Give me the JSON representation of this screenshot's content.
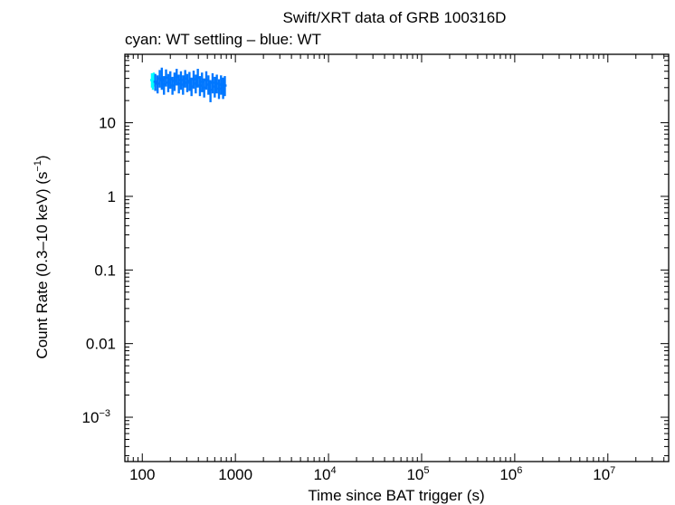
{
  "chart_data": {
    "type": "scatter",
    "title": "Swift/XRT data of GRB 100316D",
    "subtitle": "cyan: WT settling – blue: WT",
    "xlabel": "Time since BAT trigger (s)",
    "ylabel_main": "Count Rate (0.3–10 keV) (s",
    "ylabel_sup": "−1",
    "ylabel_end": ")",
    "x_scale": "log",
    "y_scale": "log",
    "xlim": [
      65,
      45000000
    ],
    "ylim": [
      0.00025,
      85
    ],
    "grid": false,
    "x_ticks": [
      {
        "value": 100,
        "label": "100",
        "sup": ""
      },
      {
        "value": 1000,
        "label": "1000",
        "sup": ""
      },
      {
        "value": 10000,
        "label": "10",
        "sup": "4"
      },
      {
        "value": 100000,
        "label": "10",
        "sup": "5"
      },
      {
        "value": 1000000,
        "label": "10",
        "sup": "6"
      },
      {
        "value": 10000000,
        "label": "10",
        "sup": "7"
      }
    ],
    "y_ticks": [
      {
        "value": 10,
        "label": "10",
        "sup": ""
      },
      {
        "value": 1,
        "label": "1",
        "sup": ""
      },
      {
        "value": 0.1,
        "label": "0.1",
        "sup": ""
      },
      {
        "value": 0.01,
        "label": "0.01",
        "sup": ""
      },
      {
        "value": 0.001,
        "label": "10",
        "sup": "−3"
      }
    ],
    "series": [
      {
        "name": "WT settling",
        "color": "#00ffff",
        "points": [
          {
            "x": 127,
            "y": 38,
            "ylo": 30,
            "yhi": 47
          },
          {
            "x": 130,
            "y": 36,
            "ylo": 28,
            "yhi": 45
          },
          {
            "x": 133,
            "y": 39,
            "ylo": 31,
            "yhi": 48
          }
        ]
      },
      {
        "name": "WT",
        "color": "#0077ff",
        "points": [
          {
            "x": 138,
            "y": 36,
            "ylo": 27,
            "yhi": 46
          },
          {
            "x": 146,
            "y": 34,
            "ylo": 25,
            "yhi": 44
          },
          {
            "x": 154,
            "y": 40,
            "ylo": 30,
            "yhi": 52
          },
          {
            "x": 162,
            "y": 38,
            "ylo": 28,
            "yhi": 56
          },
          {
            "x": 171,
            "y": 33,
            "ylo": 24,
            "yhi": 43
          },
          {
            "x": 180,
            "y": 41,
            "ylo": 31,
            "yhi": 53
          },
          {
            "x": 190,
            "y": 35,
            "ylo": 26,
            "yhi": 46
          },
          {
            "x": 200,
            "y": 39,
            "ylo": 29,
            "yhi": 50
          },
          {
            "x": 211,
            "y": 32,
            "ylo": 24,
            "yhi": 42
          },
          {
            "x": 222,
            "y": 37,
            "ylo": 27,
            "yhi": 48
          },
          {
            "x": 234,
            "y": 42,
            "ylo": 32,
            "yhi": 54
          },
          {
            "x": 247,
            "y": 34,
            "ylo": 25,
            "yhi": 45
          },
          {
            "x": 260,
            "y": 38,
            "ylo": 28,
            "yhi": 50
          },
          {
            "x": 274,
            "y": 33,
            "ylo": 24,
            "yhi": 44
          },
          {
            "x": 289,
            "y": 40,
            "ylo": 30,
            "yhi": 52
          },
          {
            "x": 304,
            "y": 35,
            "ylo": 26,
            "yhi": 46
          },
          {
            "x": 321,
            "y": 37,
            "ylo": 27,
            "yhi": 49
          },
          {
            "x": 338,
            "y": 31,
            "ylo": 23,
            "yhi": 41
          },
          {
            "x": 356,
            "y": 39,
            "ylo": 29,
            "yhi": 51
          },
          {
            "x": 375,
            "y": 34,
            "ylo": 25,
            "yhi": 45
          },
          {
            "x": 395,
            "y": 41,
            "ylo": 30,
            "yhi": 54
          },
          {
            "x": 416,
            "y": 32,
            "ylo": 23,
            "yhi": 43
          },
          {
            "x": 438,
            "y": 36,
            "ylo": 26,
            "yhi": 48
          },
          {
            "x": 462,
            "y": 30,
            "ylo": 22,
            "yhi": 40
          },
          {
            "x": 487,
            "y": 38,
            "ylo": 28,
            "yhi": 50
          },
          {
            "x": 513,
            "y": 33,
            "ylo": 24,
            "yhi": 44
          },
          {
            "x": 540,
            "y": 28,
            "ylo": 19,
            "yhi": 38
          },
          {
            "x": 569,
            "y": 35,
            "ylo": 25,
            "yhi": 47
          },
          {
            "x": 600,
            "y": 31,
            "ylo": 22,
            "yhi": 42
          },
          {
            "x": 632,
            "y": 34,
            "ylo": 25,
            "yhi": 45
          },
          {
            "x": 666,
            "y": 29,
            "ylo": 21,
            "yhi": 39
          },
          {
            "x": 701,
            "y": 33,
            "ylo": 24,
            "yhi": 44
          },
          {
            "x": 738,
            "y": 30,
            "ylo": 21,
            "yhi": 41
          },
          {
            "x": 770,
            "y": 32,
            "ylo": 23,
            "yhi": 43
          }
        ]
      }
    ]
  }
}
